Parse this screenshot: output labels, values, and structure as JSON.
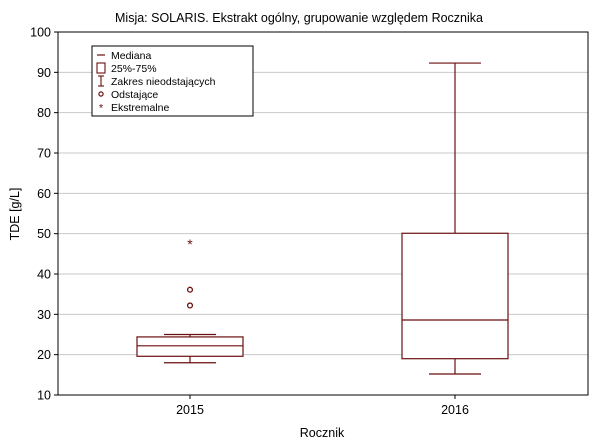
{
  "chart_data": {
    "type": "box",
    "title": "Misja: SOLARIS. Ekstrakt ogólny, grupowanie względem Rocznika",
    "xlabel": "Rocznik",
    "ylabel": "TDE [g/L]",
    "ylim": [
      10,
      100
    ],
    "yticks": [
      10,
      20,
      30,
      40,
      50,
      60,
      70,
      80,
      90,
      100
    ],
    "grid": true,
    "legend_position": "top-left",
    "colors": {
      "box": "#6b0f0f",
      "grid": "#c8c8c8",
      "axis": "#000000"
    },
    "legend": [
      "Mediana",
      "25%-75%",
      "Zakres nieodstających",
      "Odstające",
      "Ekstremalne"
    ],
    "categories": [
      "2015",
      "2016"
    ],
    "boxes": [
      {
        "category": "2015",
        "whisker_low": 18.0,
        "q1": 19.6,
        "median": 22.2,
        "q3": 24.4,
        "whisker_high": 25.0,
        "outliers": [
          32.2,
          36.1
        ],
        "extremes": [
          47.4
        ]
      },
      {
        "category": "2016",
        "whisker_low": 15.2,
        "q1": 19.0,
        "median": 28.6,
        "q3": 50.1,
        "whisker_high": 92.3,
        "outliers": [],
        "extremes": []
      }
    ]
  }
}
